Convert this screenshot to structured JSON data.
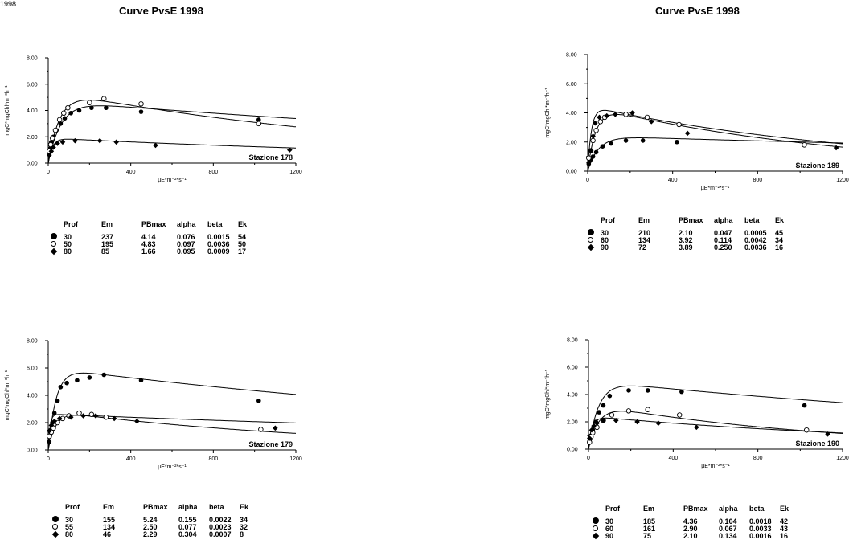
{
  "corner_text": "1998.",
  "titles": {
    "left": "Curve PvsE 1998",
    "right": "Curve PvsE 1998"
  },
  "param_headers": [
    "Prof",
    "Em",
    "PBmax",
    "alpha",
    "beta",
    "Ek"
  ],
  "colors": {
    "ink": "#000000",
    "background": "#ffffff"
  },
  "chart_data": [
    {
      "type": "scatter",
      "station": "Stazione 178",
      "xlabel": "µE*m⁻²*s⁻¹",
      "ylabel": "mgC*mgChl*m⁻³h⁻¹",
      "xlim": [
        0,
        1200
      ],
      "ylim": [
        0,
        8
      ],
      "xticks": [
        "0",
        "400",
        "800",
        "1200"
      ],
      "yticks": [
        "0.00",
        "2.00",
        "4.00",
        "6.00",
        "8.00"
      ],
      "series": [
        {
          "prof": "30",
          "marker": "filled-circle",
          "points": [
            [
              5,
              0.8
            ],
            [
              10,
              1.1
            ],
            [
              15,
              1.6
            ],
            [
              25,
              2.0
            ],
            [
              40,
              2.5
            ],
            [
              60,
              3.0
            ],
            [
              80,
              3.4
            ],
            [
              110,
              3.8
            ],
            [
              150,
              4.0
            ],
            [
              210,
              4.2
            ],
            [
              280,
              4.2
            ],
            [
              450,
              3.9
            ],
            [
              1020,
              3.3
            ]
          ],
          "params": {
            "Em": "237",
            "PBmax": "4.14",
            "alpha": "0.076",
            "beta": "0.0015",
            "Ek": "54"
          }
        },
        {
          "prof": "50",
          "marker": "open-circle",
          "points": [
            [
              5,
              0.9
            ],
            [
              12,
              1.4
            ],
            [
              20,
              1.9
            ],
            [
              35,
              2.5
            ],
            [
              55,
              3.3
            ],
            [
              75,
              3.8
            ],
            [
              95,
              4.2
            ],
            [
              200,
              4.6
            ],
            [
              270,
              4.9
            ],
            [
              450,
              4.5
            ],
            [
              1020,
              3.0
            ]
          ],
          "params": {
            "Em": "195",
            "PBmax": "4.83",
            "alpha": "0.097",
            "beta": "0.0036",
            "Ek": "50"
          }
        },
        {
          "prof": "80",
          "marker": "diamond",
          "points": [
            [
              5,
              0.6
            ],
            [
              15,
              0.9
            ],
            [
              25,
              1.2
            ],
            [
              45,
              1.5
            ],
            [
              70,
              1.6
            ],
            [
              130,
              1.7
            ],
            [
              250,
              1.7
            ],
            [
              330,
              1.6
            ],
            [
              520,
              1.35
            ],
            [
              1170,
              1.0
            ]
          ],
          "params": {
            "Em": "85",
            "PBmax": "1.66",
            "alpha": "0.095",
            "beta": "0.0009",
            "Ek": "17"
          }
        }
      ]
    },
    {
      "type": "scatter",
      "station": "Stazione 189",
      "xlabel": "µE*m⁻²*s⁻¹",
      "ylabel": "mgC*mgChl*m⁻³h⁻¹",
      "xlim": [
        0,
        1200
      ],
      "ylim": [
        0,
        8
      ],
      "xticks": [
        "0",
        "400",
        "800",
        "1200"
      ],
      "yticks": [
        "0.00",
        "2.00",
        "4.00",
        "6.00",
        "8.00"
      ],
      "series": [
        {
          "prof": "30",
          "marker": "filled-circle",
          "points": [
            [
              5,
              0.5
            ],
            [
              15,
              0.8
            ],
            [
              25,
              1.0
            ],
            [
              40,
              1.3
            ],
            [
              70,
              1.7
            ],
            [
              110,
              1.9
            ],
            [
              180,
              2.1
            ],
            [
              260,
              2.1
            ],
            [
              420,
              2.0
            ],
            [
              1020,
              1.8
            ]
          ],
          "params": {
            "Em": "210",
            "PBmax": "2.10",
            "alpha": "0.047",
            "beta": "0.0005",
            "Ek": "45"
          }
        },
        {
          "prof": "60",
          "marker": "open-circle",
          "points": [
            [
              5,
              0.9
            ],
            [
              15,
              1.4
            ],
            [
              25,
              2.1
            ],
            [
              40,
              2.8
            ],
            [
              60,
              3.4
            ],
            [
              80,
              3.7
            ],
            [
              180,
              3.9
            ],
            [
              280,
              3.7
            ],
            [
              430,
              3.2
            ],
            [
              1020,
              1.8
            ]
          ],
          "params": {
            "Em": "134",
            "PBmax": "3.92",
            "alpha": "0.114",
            "beta": "0.0042",
            "Ek": "34"
          }
        },
        {
          "prof": "90",
          "marker": "diamond",
          "points": [
            [
              5,
              0.6
            ],
            [
              15,
              1.4
            ],
            [
              25,
              2.4
            ],
            [
              35,
              3.3
            ],
            [
              55,
              3.7
            ],
            [
              90,
              3.8
            ],
            [
              130,
              3.9
            ],
            [
              210,
              4.0
            ],
            [
              300,
              3.4
            ],
            [
              470,
              2.6
            ],
            [
              1170,
              1.6
            ]
          ],
          "params": {
            "Em": "72",
            "PBmax": "3.89",
            "alpha": "0.250",
            "beta": "0.0036",
            "Ek": "16"
          }
        }
      ]
    },
    {
      "type": "scatter",
      "station": "Stazione 179",
      "xlabel": "µE*m⁻²*s⁻¹",
      "ylabel": "mgC*mgChl*m⁻³h⁻¹",
      "xlim": [
        0,
        1200
      ],
      "ylim": [
        0,
        8
      ],
      "xticks": [
        "0",
        "400",
        "800",
        "1200"
      ],
      "yticks": [
        "0.00",
        "2.00",
        "4.00",
        "6.00",
        "8.00"
      ],
      "series": [
        {
          "prof": "30",
          "marker": "filled-circle",
          "points": [
            [
              5,
              0.6
            ],
            [
              12,
              1.3
            ],
            [
              20,
              2.0
            ],
            [
              30,
              2.7
            ],
            [
              45,
              3.6
            ],
            [
              60,
              4.6
            ],
            [
              90,
              4.9
            ],
            [
              140,
              5.1
            ],
            [
              200,
              5.3
            ],
            [
              270,
              5.5
            ],
            [
              450,
              5.1
            ],
            [
              1020,
              3.6
            ]
          ],
          "params": {
            "Em": "155",
            "PBmax": "5.24",
            "alpha": "0.155",
            "beta": "0.0022",
            "Ek": "34"
          }
        },
        {
          "prof": "55",
          "marker": "open-circle",
          "points": [
            [
              5,
              1.0
            ],
            [
              15,
              1.3
            ],
            [
              25,
              1.6
            ],
            [
              45,
              2.0
            ],
            [
              70,
              2.3
            ],
            [
              100,
              2.5
            ],
            [
              150,
              2.7
            ],
            [
              210,
              2.6
            ],
            [
              280,
              2.4
            ],
            [
              1030,
              1.5
            ]
          ],
          "params": {
            "Em": "134",
            "PBmax": "2.50",
            "alpha": "0.077",
            "beta": "0.0023",
            "Ek": "32"
          }
        },
        {
          "prof": "80",
          "marker": "diamond",
          "points": [
            [
              5,
              1.4
            ],
            [
              15,
              1.8
            ],
            [
              30,
              2.1
            ],
            [
              55,
              2.3
            ],
            [
              110,
              2.4
            ],
            [
              170,
              2.5
            ],
            [
              230,
              2.5
            ],
            [
              320,
              2.3
            ],
            [
              430,
              2.1
            ],
            [
              1100,
              1.6
            ]
          ],
          "params": {
            "Em": "46",
            "PBmax": "2.29",
            "alpha": "0.304",
            "beta": "0.0007",
            "Ek": "8"
          }
        }
      ]
    },
    {
      "type": "scatter",
      "station": "Stazione 190",
      "xlabel": "µE*m⁻²*s⁻¹",
      "ylabel": "mgC*mgChl*m⁻³h⁻¹",
      "xlim": [
        0,
        1200
      ],
      "ylim": [
        0,
        8
      ],
      "xticks": [
        "0",
        "400",
        "800",
        "1200"
      ],
      "yticks": [
        "0.00",
        "2.00",
        "4.00",
        "6.00",
        "8.00"
      ],
      "series": [
        {
          "prof": "30",
          "marker": "filled-circle",
          "points": [
            [
              5,
              0.6
            ],
            [
              12,
              1.0
            ],
            [
              20,
              1.4
            ],
            [
              35,
              2.0
            ],
            [
              50,
              2.7
            ],
            [
              70,
              3.2
            ],
            [
              100,
              3.9
            ],
            [
              190,
              4.3
            ],
            [
              280,
              4.3
            ],
            [
              440,
              4.2
            ],
            [
              1020,
              3.2
            ]
          ],
          "params": {
            "Em": "185",
            "PBmax": "4.36",
            "alpha": "0.104",
            "beta": "0.0018",
            "Ek": "42"
          }
        },
        {
          "prof": "60",
          "marker": "open-circle",
          "points": [
            [
              5,
              0.5
            ],
            [
              12,
              0.9
            ],
            [
              20,
              1.2
            ],
            [
              40,
              1.6
            ],
            [
              70,
              2.1
            ],
            [
              110,
              2.5
            ],
            [
              190,
              2.8
            ],
            [
              280,
              2.9
            ],
            [
              430,
              2.5
            ],
            [
              1030,
              1.4
            ]
          ],
          "params": {
            "Em": "161",
            "PBmax": "2.90",
            "alpha": "0.067",
            "beta": "0.0033",
            "Ek": "43"
          }
        },
        {
          "prof": "90",
          "marker": "diamond",
          "points": [
            [
              5,
              0.8
            ],
            [
              15,
              1.4
            ],
            [
              25,
              1.7
            ],
            [
              40,
              1.9
            ],
            [
              70,
              2.1
            ],
            [
              130,
              2.1
            ],
            [
              230,
              2.0
            ],
            [
              330,
              1.9
            ],
            [
              510,
              1.6
            ],
            [
              1130,
              1.1
            ]
          ],
          "params": {
            "Em": "75",
            "PBmax": "2.10",
            "alpha": "0.134",
            "beta": "0.0016",
            "Ek": "16"
          }
        }
      ]
    }
  ]
}
